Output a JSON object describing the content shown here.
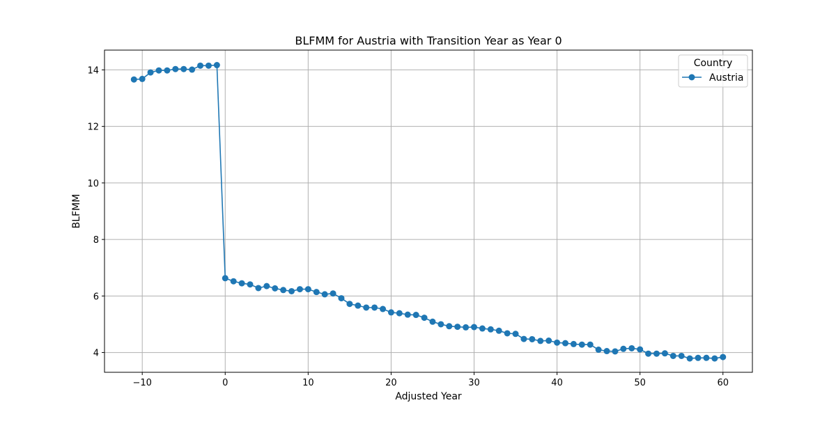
{
  "chart_data": {
    "type": "line",
    "title": "BLFMM for Austria with Transition Year as Year 0",
    "xlabel": "Adjusted Year",
    "ylabel": "BLFMM",
    "xlim": [
      -14.55,
      63.55
    ],
    "ylim": [
      3.3,
      14.7
    ],
    "xticks": [
      -10,
      0,
      10,
      20,
      30,
      40,
      50,
      60
    ],
    "xtick_labels": [
      "−10",
      "0",
      "10",
      "20",
      "30",
      "40",
      "50",
      "60"
    ],
    "yticks": [
      4,
      6,
      8,
      10,
      12,
      14
    ],
    "ytick_labels": [
      "4",
      "6",
      "8",
      "10",
      "12",
      "14"
    ],
    "grid": true,
    "legend": {
      "title": "Country",
      "placement": "top-right"
    },
    "series": [
      {
        "name": "Austria",
        "color": "#1f77b4",
        "marker": "circle",
        "x": [
          -11,
          -10,
          -9,
          -8,
          -7,
          -6,
          -5,
          -4,
          -3,
          -2,
          -1,
          0,
          1,
          2,
          3,
          4,
          5,
          6,
          7,
          8,
          9,
          10,
          11,
          12,
          13,
          14,
          15,
          16,
          17,
          18,
          19,
          20,
          21,
          22,
          23,
          24,
          25,
          26,
          27,
          28,
          29,
          30,
          31,
          32,
          33,
          34,
          35,
          36,
          37,
          38,
          39,
          40,
          41,
          42,
          43,
          44,
          45,
          46,
          47,
          48,
          49,
          50,
          51,
          52,
          53,
          54,
          55,
          56,
          57,
          58,
          59,
          60
        ],
        "y": [
          13.66,
          13.68,
          13.91,
          13.98,
          13.98,
          14.03,
          14.03,
          14.01,
          14.15,
          14.15,
          14.17,
          6.63,
          6.52,
          6.45,
          6.41,
          6.28,
          6.35,
          6.27,
          6.21,
          6.17,
          6.24,
          6.24,
          6.14,
          6.06,
          6.09,
          5.92,
          5.72,
          5.66,
          5.59,
          5.59,
          5.54,
          5.42,
          5.39,
          5.34,
          5.33,
          5.23,
          5.09,
          5.0,
          4.93,
          4.91,
          4.89,
          4.9,
          4.85,
          4.82,
          4.77,
          4.68,
          4.66,
          4.48,
          4.47,
          4.41,
          4.42,
          4.35,
          4.33,
          4.3,
          4.28,
          4.28,
          4.1,
          4.05,
          4.04,
          4.13,
          4.15,
          4.11,
          3.96,
          3.96,
          3.97,
          3.88,
          3.88,
          3.79,
          3.81,
          3.81,
          3.79,
          3.84
        ]
      }
    ]
  }
}
